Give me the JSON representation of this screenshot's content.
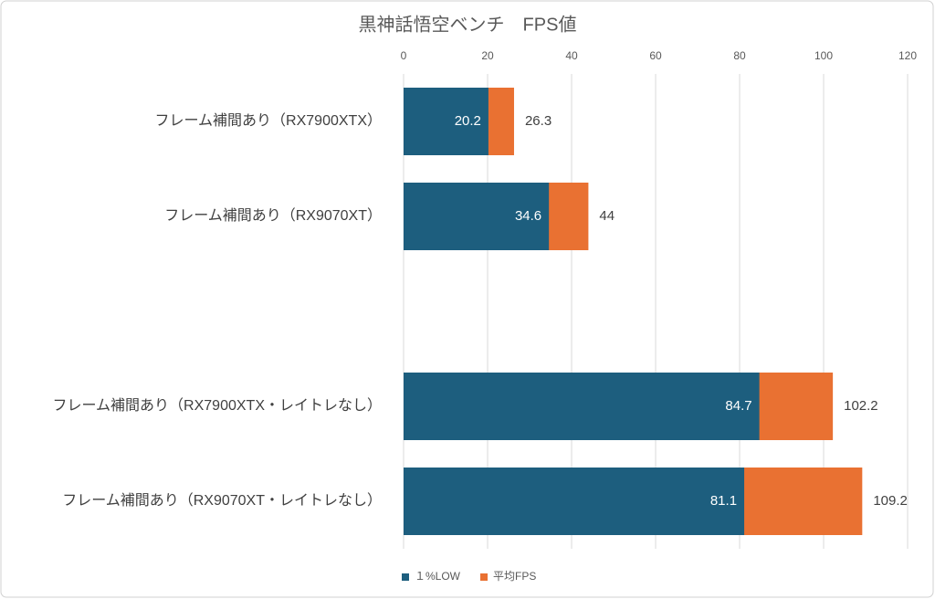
{
  "chart_data": {
    "type": "bar",
    "orientation": "horizontal",
    "title": "黒神話悟空ベンチ　FPS値",
    "categories": [
      "フレーム補間あり（RX7900XTX）",
      "フレーム補間あり（RX9070XT）",
      null,
      "フレーム補間あり（RX7900XTX・レイトレなし）",
      "フレーム補間あり（RX9070XT・レイトレなし）"
    ],
    "series": [
      {
        "name": "１%LOW",
        "color": "#1d5e7e",
        "values": [
          20.2,
          34.6,
          null,
          84.7,
          81.1
        ]
      },
      {
        "name": "平均FPS",
        "color": "#e97132",
        "values": [
          26.3,
          44,
          null,
          102.2,
          109.2
        ]
      }
    ],
    "xlim": [
      0,
      120
    ],
    "xticks": [
      0,
      20,
      40,
      60,
      80,
      100,
      120
    ],
    "grid": true,
    "legend": "bottom"
  }
}
